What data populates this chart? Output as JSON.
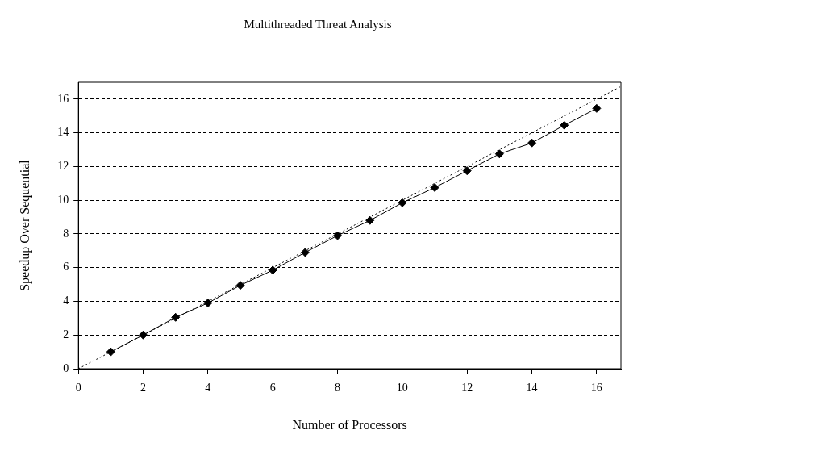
{
  "chart_data": {
    "type": "line",
    "title": "Multithreaded Threat Analysis",
    "xlabel": "Number of Processors",
    "ylabel": "Speedup Over Sequential",
    "xlim": [
      0,
      16.75
    ],
    "ylim": [
      0,
      17
    ],
    "xticks": [
      0,
      2,
      4,
      6,
      8,
      10,
      12,
      14,
      16
    ],
    "yticks": [
      0,
      2,
      4,
      6,
      8,
      10,
      12,
      14,
      16
    ],
    "grid": "y",
    "legend": false,
    "series": [
      {
        "type": "line",
        "color": "#000000",
        "marker": "diamond",
        "line_style": "solid",
        "x": [
          1,
          2,
          3,
          4,
          5,
          6,
          7,
          8,
          9,
          10,
          11,
          12,
          13,
          14,
          15,
          16
        ],
        "values": [
          1,
          2,
          3.05,
          3.9,
          4.95,
          5.85,
          6.9,
          7.9,
          8.8,
          9.85,
          10.75,
          11.75,
          12.75,
          13.4,
          14.45,
          15.45
        ]
      },
      {
        "type": "line",
        "color": "#000000",
        "marker": "none",
        "line_style": "dotted",
        "x": [
          0,
          16.75
        ],
        "values": [
          0,
          16.75
        ]
      }
    ]
  }
}
